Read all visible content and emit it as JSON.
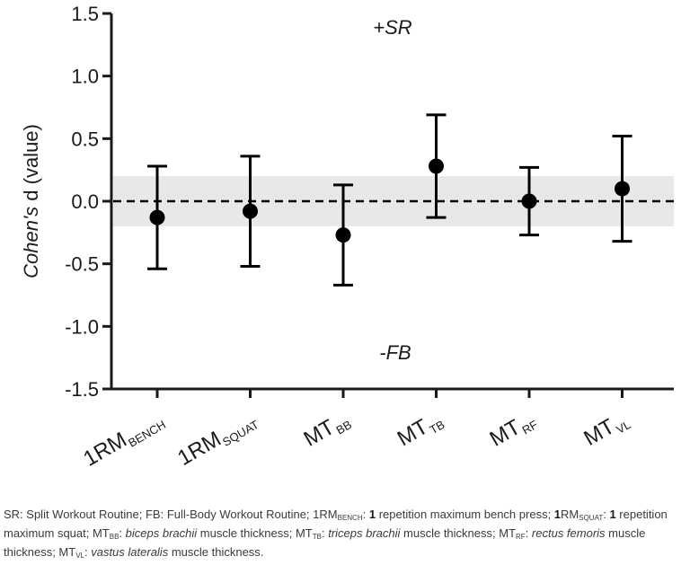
{
  "chart_data": {
    "type": "scatter",
    "error_bars": true,
    "categories": [
      {
        "main": "1RM",
        "sub": "BENCH"
      },
      {
        "main": "1RM",
        "sub": "SQUAT"
      },
      {
        "main": "MT",
        "sub": "BB"
      },
      {
        "main": "MT",
        "sub": "TB"
      },
      {
        "main": "MT",
        "sub": "RF"
      },
      {
        "main": "MT",
        "sub": "VL"
      }
    ],
    "values": [
      -0.13,
      -0.08,
      -0.27,
      0.28,
      0.0,
      0.1
    ],
    "ci_lower": [
      -0.54,
      -0.52,
      -0.67,
      -0.13,
      -0.27,
      -0.32
    ],
    "ci_upper": [
      0.28,
      0.36,
      0.13,
      0.69,
      0.27,
      0.52
    ],
    "ylim": [
      -1.5,
      1.5
    ],
    "yticks": [
      "-1.5",
      "-1.0",
      "-0.5",
      "0.0",
      "0.5",
      "1.0",
      "1.5"
    ],
    "ylabel": {
      "italic": "Cohen's",
      "rest": " d (value)"
    },
    "trivial_band": [
      -0.2,
      0.2
    ],
    "reference_line": 0,
    "annotations": {
      "top": "+SR",
      "bottom": "-FB"
    },
    "colors": {
      "marker": "#000000",
      "band": "#e8e8e8",
      "axis": "#1a1a1a"
    }
  },
  "caption": [
    {
      "t": "SR: Split Workout Routine; FB: Full-Body Workout Routine; 1RM"
    },
    {
      "sub": "BENCH"
    },
    {
      "t": ": "
    },
    {
      "b": "1"
    },
    {
      "t": " repetition maximum bench press; "
    },
    {
      "b": "1"
    },
    {
      "t": "RM"
    },
    {
      "sub": "SQUAT"
    },
    {
      "t": ": "
    },
    {
      "b": "1"
    },
    {
      "t": " repetition maximum squat; MT"
    },
    {
      "sub": "BB"
    },
    {
      "t": ": "
    },
    {
      "i": "biceps brachii"
    },
    {
      "t": " muscle thickness; MT"
    },
    {
      "sub": "TB"
    },
    {
      "t": ": "
    },
    {
      "i": "triceps brachii"
    },
    {
      "t": " muscle thickness; MT"
    },
    {
      "sub": "RF"
    },
    {
      "t": ": "
    },
    {
      "i": "rectus femoris"
    },
    {
      "t": " muscle thickness; MT"
    },
    {
      "sub": "VL"
    },
    {
      "t": ": "
    },
    {
      "i": "vastus lateralis"
    },
    {
      "t": " muscle thickness."
    }
  ]
}
